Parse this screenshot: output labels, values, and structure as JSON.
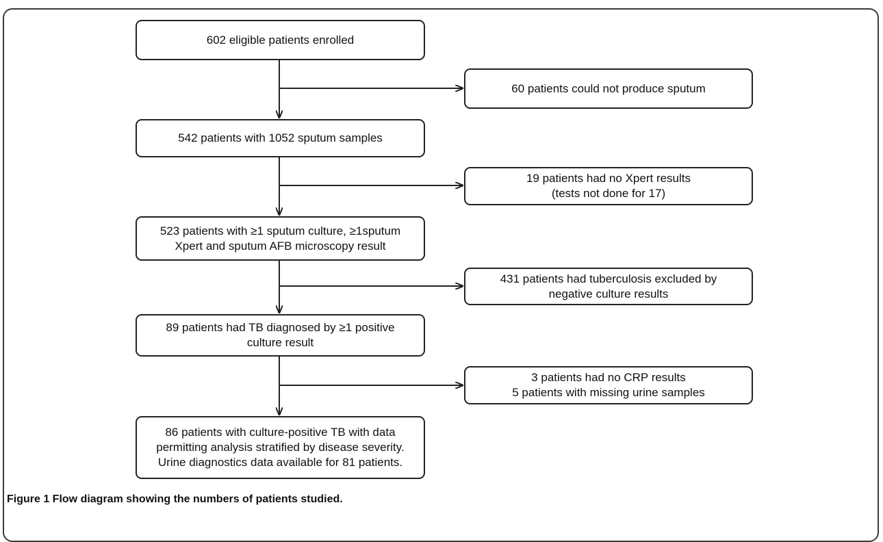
{
  "figure": {
    "main_boxes": [
      {
        "lines": [
          "602 eligible patients enrolled"
        ]
      },
      {
        "lines": [
          "542 patients with 1052 sputum samples"
        ]
      },
      {
        "lines": [
          "523 patients with ≥1 sputum culture, ≥1sputum",
          "Xpert and sputum AFB microscopy result"
        ]
      },
      {
        "lines": [
          "89  patients had TB diagnosed by ≥1 positive",
          "culture result"
        ]
      },
      {
        "lines": [
          "86 patients with culture-positive TB with data",
          "permitting analysis stratified by disease severity.",
          "Urine diagnostics data available for 81 patients."
        ]
      }
    ],
    "side_boxes": [
      {
        "lines": [
          "60 patients could not produce sputum"
        ]
      },
      {
        "lines": [
          "19 patients had no Xpert results",
          "(tests not done for 17)"
        ]
      },
      {
        "lines": [
          "431 patients had tuberculosis excluded by",
          "negative culture results"
        ]
      },
      {
        "lines": [
          "3 patients had no CRP results",
          "5 patients with missing urine samples"
        ]
      }
    ],
    "caption": "Figure 1 Flow diagram showing the numbers of patients studied."
  }
}
